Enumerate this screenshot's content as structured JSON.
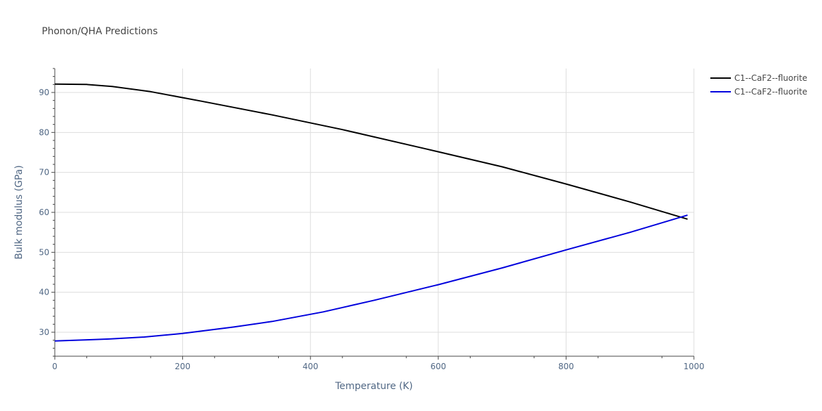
{
  "chart_data": {
    "type": "line",
    "title": "Phonon/QHA Predictions",
    "xlabel": "Temperature (K)",
    "ylabel": "Bulk modulus (GPa)",
    "xlim": [
      0,
      1000
    ],
    "ylim": [
      24,
      96
    ],
    "xticks": [
      0,
      200,
      400,
      600,
      800,
      1000
    ],
    "yticks": [
      30,
      40,
      50,
      60,
      70,
      80,
      90
    ],
    "grid": true,
    "legend_position": "top-right",
    "series": [
      {
        "name": "C1--CaF2--fluorite",
        "color": "#000000",
        "x": [
          0,
          50,
          90,
          150,
          230,
          340,
          450,
          580,
          700,
          800,
          900,
          990
        ],
        "y": [
          92.1,
          92.0,
          91.5,
          90.2,
          87.8,
          84.4,
          80.7,
          75.9,
          71.4,
          67.1,
          62.6,
          58.3
        ]
      },
      {
        "name": "C1--CaF2--fluorite",
        "color": "#0000dd",
        "x": [
          0,
          50,
          85,
          140,
          200,
          280,
          340,
          420,
          500,
          600,
          700,
          800,
          900,
          990
        ],
        "y": [
          27.8,
          28.1,
          28.3,
          28.8,
          29.7,
          31.3,
          32.7,
          35.1,
          38.0,
          41.9,
          46.1,
          50.6,
          55.0,
          59.3
        ]
      }
    ]
  }
}
